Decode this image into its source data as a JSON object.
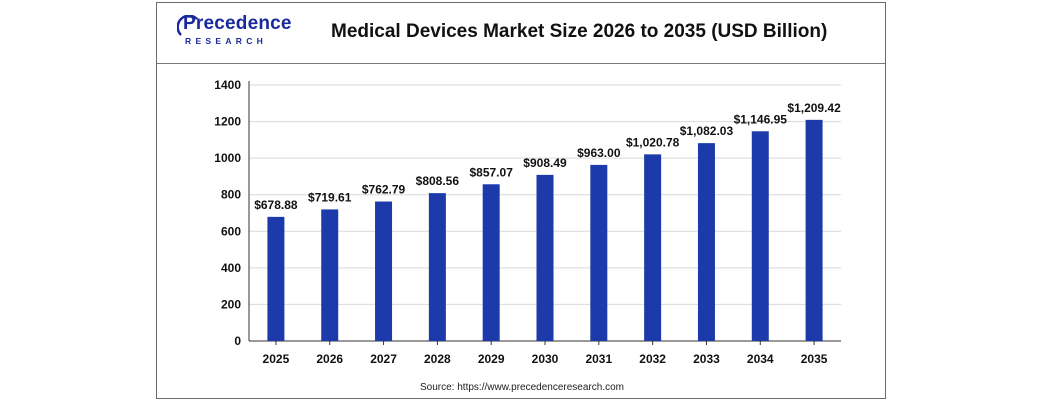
{
  "header": {
    "logo_line1": "Precedence",
    "logo_line2": "RESEARCH",
    "title": "Medical Devices Market Size 2026 to 2035 (USD Billion)"
  },
  "footer": {
    "source": "Source: https://www.precedenceresearch.com"
  },
  "colors": {
    "bar": "#1c3aa9",
    "brand": "#1a2a9c",
    "grid": "#d9d9d9"
  },
  "chart_data": {
    "type": "bar",
    "title": "Medical Devices Market Size 2026 to 2035 (USD Billion)",
    "xlabel": "",
    "ylabel": "",
    "categories": [
      "2025",
      "2026",
      "2027",
      "2028",
      "2029",
      "2030",
      "2031",
      "2032",
      "2033",
      "2034",
      "2035"
    ],
    "values": [
      678.88,
      719.61,
      762.79,
      808.56,
      857.07,
      908.49,
      963.0,
      1020.78,
      1082.03,
      1146.95,
      1209.42
    ],
    "data_labels": [
      "$678.88",
      "$719.61",
      "$762.79",
      "$808.56",
      "$857.07",
      "$908.49",
      "$963.00",
      "$1,020.78",
      "$1,082.03",
      "$1,146.95",
      "$1,209.42"
    ],
    "ylim": [
      0,
      1400
    ],
    "yticks": [
      0,
      200,
      400,
      600,
      800,
      1000,
      1200,
      1400
    ],
    "grid": true,
    "legend": "none"
  }
}
